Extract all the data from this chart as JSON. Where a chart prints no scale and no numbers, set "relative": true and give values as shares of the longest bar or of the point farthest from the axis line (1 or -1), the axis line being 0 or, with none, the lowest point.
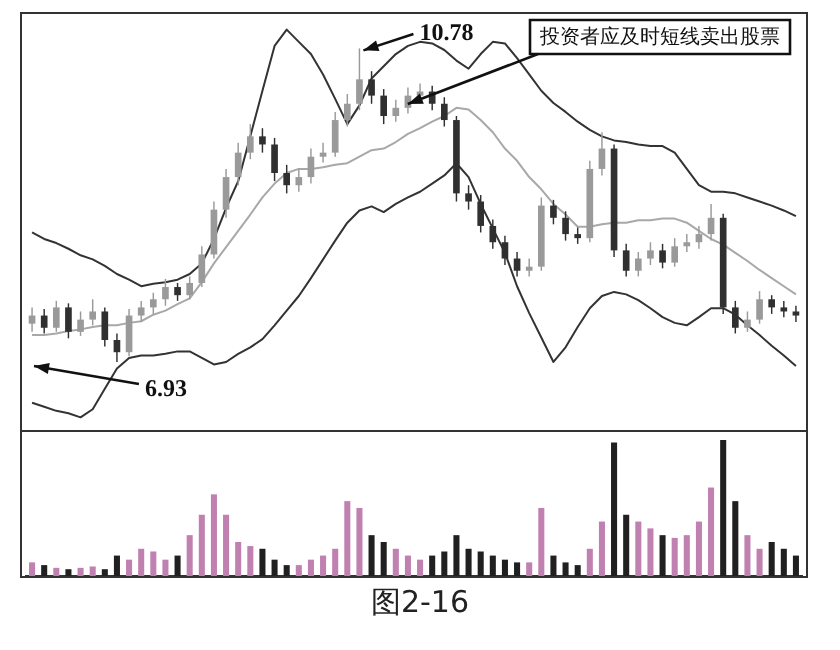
{
  "chart_data": [
    {
      "type": "candlestick",
      "tick_labels": false,
      "legend": false,
      "colors": [
        "#9a9a9a",
        "#303030",
        "#9a9a9a",
        "#303030",
        "#9a9a9a",
        "#9a9a9a",
        "#303030",
        "#303030",
        "#9a9a9a",
        "#9a9a9a",
        "#9a9a9a",
        "#9a9a9a",
        "#303030",
        "#9a9a9a",
        "#9a9a9a",
        "#9a9a9a",
        "#9a9a9a",
        "#9a9a9a",
        "#9a9a9a",
        "#303030",
        "#303030",
        "#303030",
        "#9a9a9a",
        "#9a9a9a",
        "#9a9a9a",
        "#9a9a9a",
        "#9a9a9a",
        "#9a9a9a",
        "#303030",
        "#303030",
        "#9a9a9a",
        "#9a9a9a",
        "#9a9a9a",
        "#303030",
        "#303030",
        "#303030",
        "#303030",
        "#303030",
        "#303030",
        "#303030",
        "#303030",
        "#9a9a9a",
        "#9a9a9a",
        "#303030",
        "#303030",
        "#303030",
        "#9a9a9a",
        "#9a9a9a",
        "#303030",
        "#303030",
        "#9a9a9a",
        "#9a9a9a",
        "#303030",
        "#9a9a9a",
        "#9a9a9a",
        "#9a9a9a",
        "#9a9a9a",
        "#303030",
        "#303030",
        "#9a9a9a",
        "#9a9a9a",
        "#303030",
        "#303030",
        "#303030"
      ],
      "categories": [
        null,
        null,
        null,
        null,
        null,
        null,
        null,
        null,
        null,
        null,
        null,
        null,
        null,
        null,
        null,
        null,
        null,
        null,
        null,
        null,
        null,
        null,
        null,
        null,
        null,
        null,
        null,
        null,
        null,
        null,
        null,
        null,
        null,
        null,
        null,
        null,
        null,
        null,
        null,
        null,
        null,
        null,
        null,
        null,
        null,
        null,
        null,
        null,
        null,
        null,
        null,
        null,
        null,
        null,
        null,
        null,
        null,
        null,
        null,
        null,
        null,
        null,
        null,
        null
      ],
      "ohlc": [
        [
          7.4,
          7.6,
          7.3,
          7.5
        ],
        [
          7.5,
          7.58,
          7.28,
          7.35
        ],
        [
          7.35,
          7.68,
          7.3,
          7.6
        ],
        [
          7.6,
          7.65,
          7.22,
          7.3
        ],
        [
          7.3,
          7.55,
          7.25,
          7.45
        ],
        [
          7.45,
          7.7,
          7.38,
          7.55
        ],
        [
          7.55,
          7.6,
          7.12,
          7.2
        ],
        [
          7.2,
          7.28,
          6.93,
          7.05
        ],
        [
          7.05,
          7.58,
          7.0,
          7.5
        ],
        [
          7.5,
          7.68,
          7.42,
          7.6
        ],
        [
          7.6,
          7.78,
          7.52,
          7.7
        ],
        [
          7.7,
          7.95,
          7.62,
          7.85
        ],
        [
          7.85,
          7.9,
          7.68,
          7.75
        ],
        [
          7.75,
          7.98,
          7.7,
          7.9
        ],
        [
          7.9,
          8.35,
          7.85,
          8.25
        ],
        [
          8.25,
          8.9,
          8.2,
          8.8
        ],
        [
          8.8,
          9.3,
          8.7,
          9.2
        ],
        [
          9.2,
          9.62,
          9.1,
          9.5
        ],
        [
          9.5,
          9.85,
          9.42,
          9.7
        ],
        [
          9.7,
          9.8,
          9.5,
          9.6
        ],
        [
          9.6,
          9.68,
          9.15,
          9.25
        ],
        [
          9.25,
          9.35,
          9.0,
          9.1
        ],
        [
          9.1,
          9.3,
          9.02,
          9.2
        ],
        [
          9.2,
          9.55,
          9.12,
          9.45
        ],
        [
          9.45,
          9.62,
          9.38,
          9.5
        ],
        [
          9.5,
          10.0,
          9.45,
          9.9
        ],
        [
          9.9,
          10.22,
          9.82,
          10.1
        ],
        [
          10.1,
          10.78,
          10.02,
          10.4
        ],
        [
          10.4,
          10.5,
          10.1,
          10.2
        ],
        [
          10.2,
          10.28,
          9.85,
          9.95
        ],
        [
          9.95,
          10.15,
          9.88,
          10.05
        ],
        [
          10.05,
          10.3,
          9.98,
          10.2
        ],
        [
          10.2,
          10.35,
          10.1,
          10.25
        ],
        [
          10.25,
          10.32,
          10.02,
          10.1
        ],
        [
          10.1,
          10.18,
          9.82,
          9.9
        ],
        [
          9.9,
          9.95,
          8.9,
          9.0
        ],
        [
          9.0,
          9.1,
          8.8,
          8.9
        ],
        [
          8.9,
          8.98,
          8.52,
          8.6
        ],
        [
          8.6,
          8.68,
          8.32,
          8.4
        ],
        [
          8.4,
          8.48,
          8.12,
          8.2
        ],
        [
          8.2,
          8.28,
          7.98,
          8.05
        ],
        [
          8.05,
          8.2,
          7.98,
          8.1
        ],
        [
          8.1,
          8.95,
          8.05,
          8.85
        ],
        [
          8.85,
          8.92,
          8.62,
          8.7
        ],
        [
          8.7,
          8.78,
          8.42,
          8.5
        ],
        [
          8.5,
          8.58,
          8.38,
          8.45
        ],
        [
          8.45,
          9.4,
          8.4,
          9.3
        ],
        [
          9.3,
          9.75,
          9.22,
          9.55
        ],
        [
          9.55,
          9.6,
          8.22,
          8.3
        ],
        [
          8.3,
          8.38,
          7.98,
          8.05
        ],
        [
          8.05,
          8.28,
          7.98,
          8.2
        ],
        [
          8.2,
          8.4,
          8.12,
          8.3
        ],
        [
          8.3,
          8.38,
          8.08,
          8.15
        ],
        [
          8.15,
          8.45,
          8.1,
          8.35
        ],
        [
          8.35,
          8.5,
          8.28,
          8.4
        ],
        [
          8.4,
          8.6,
          8.32,
          8.5
        ],
        [
          8.5,
          8.87,
          8.42,
          8.7
        ],
        [
          8.7,
          8.75,
          7.52,
          7.6
        ],
        [
          7.6,
          7.68,
          7.28,
          7.35
        ],
        [
          7.35,
          7.55,
          7.3,
          7.45
        ],
        [
          7.45,
          7.8,
          7.4,
          7.7
        ],
        [
          7.7,
          7.75,
          7.52,
          7.6
        ],
        [
          7.6,
          7.68,
          7.48,
          7.55
        ],
        [
          7.55,
          7.62,
          7.42,
          7.5
        ]
      ],
      "series": [
        {
          "type": "line",
          "color": "#333333",
          "values": [
            8.52,
            8.44,
            8.39,
            8.32,
            8.24,
            8.19,
            8.11,
            8.01,
            7.94,
            7.86,
            7.89,
            7.91,
            7.94,
            8.01,
            8.14,
            8.44,
            8.82,
            9.15,
            9.7,
            10.26,
            10.81,
            11.01,
            10.86,
            10.71,
            10.46,
            10.16,
            9.85,
            10.08,
            10.41,
            10.56,
            10.71,
            10.81,
            10.86,
            10.84,
            10.76,
            10.63,
            10.53,
            10.71,
            10.86,
            10.84,
            10.66,
            10.46,
            10.26,
            10.11,
            10.0,
            9.88,
            9.78,
            9.7,
            9.65,
            9.63,
            9.6,
            9.58,
            9.58,
            9.5,
            9.3,
            9.1,
            9.02,
            9.02,
            9.0,
            8.95,
            8.9,
            8.85,
            8.79,
            8.72
          ]
        },
        {
          "type": "line",
          "color": "#a8a8a8",
          "values": [
            7.26,
            7.26,
            7.28,
            7.31,
            7.33,
            7.36,
            7.38,
            7.38,
            7.41,
            7.43,
            7.51,
            7.56,
            7.64,
            7.71,
            7.91,
            8.14,
            8.34,
            8.54,
            8.74,
            8.95,
            9.12,
            9.25,
            9.3,
            9.3,
            9.32,
            9.35,
            9.37,
            9.45,
            9.53,
            9.55,
            9.63,
            9.73,
            9.8,
            9.88,
            9.95,
            10.05,
            10.03,
            9.9,
            9.75,
            9.55,
            9.4,
            9.2,
            9.05,
            8.87,
            8.74,
            8.59,
            8.59,
            8.62,
            8.64,
            8.64,
            8.67,
            8.67,
            8.69,
            8.69,
            8.64,
            8.54,
            8.44,
            8.37,
            8.27,
            8.17,
            8.06,
            7.96,
            7.86,
            7.76
          ]
        },
        {
          "type": "line",
          "color": "#333333",
          "values": [
            6.43,
            6.38,
            6.33,
            6.3,
            6.25,
            6.35,
            6.6,
            6.85,
            6.98,
            7.01,
            7.01,
            7.03,
            7.06,
            7.06,
            6.98,
            6.9,
            6.93,
            7.03,
            7.11,
            7.21,
            7.38,
            7.56,
            7.74,
            7.96,
            8.19,
            8.42,
            8.64,
            8.79,
            8.84,
            8.77,
            8.87,
            8.95,
            9.02,
            9.12,
            9.22,
            9.37,
            9.2,
            8.87,
            8.57,
            8.27,
            7.86,
            7.53,
            7.23,
            6.93,
            7.11,
            7.36,
            7.59,
            7.74,
            7.79,
            7.76,
            7.69,
            7.59,
            7.48,
            7.41,
            7.38,
            7.48,
            7.59,
            7.59,
            7.51,
            7.38,
            7.26,
            7.13,
            7.01,
            6.88
          ]
        }
      ],
      "annotations": [
        {
          "text": "10.78",
          "y": 10.78
        },
        {
          "text": "6.93",
          "y": 6.93
        },
        "投资者应及时短线卖出股票",
        "图2-16"
      ]
    },
    {
      "type": "bar",
      "relative": true,
      "legend": false,
      "categories": [
        null,
        null,
        null,
        null,
        null,
        null,
        null,
        null,
        null,
        null,
        null,
        null,
        null,
        null,
        null,
        null,
        null,
        null,
        null,
        null,
        null,
        null,
        null,
        null,
        null,
        null,
        null,
        null,
        null,
        null,
        null,
        null,
        null,
        null,
        null,
        null,
        null,
        null,
        null,
        null,
        null,
        null,
        null,
        null,
        null,
        null,
        null,
        null,
        null,
        null,
        null,
        null,
        null,
        null,
        null,
        null,
        null,
        null,
        null,
        null,
        null,
        null,
        null,
        null
      ],
      "values": [
        0.1,
        0.08,
        0.06,
        0.05,
        0.06,
        0.07,
        0.05,
        0.15,
        0.12,
        0.2,
        0.18,
        0.12,
        0.15,
        0.3,
        0.45,
        0.6,
        0.45,
        0.25,
        0.22,
        0.2,
        0.12,
        0.08,
        0.08,
        0.12,
        0.15,
        0.2,
        0.55,
        0.5,
        0.3,
        0.25,
        0.2,
        0.15,
        0.12,
        0.15,
        0.18,
        0.3,
        0.2,
        0.18,
        0.15,
        0.12,
        0.1,
        0.1,
        0.5,
        0.15,
        0.1,
        0.08,
        0.2,
        0.4,
        0.98,
        0.45,
        0.4,
        0.35,
        0.3,
        0.28,
        0.3,
        0.4,
        0.65,
        1.0,
        0.55,
        0.3,
        0.2,
        0.25,
        0.2,
        0.15
      ],
      "colors": [
        "#c080b0",
        "#202020",
        "#c080b0",
        "#202020",
        "#c080b0",
        "#c080b0",
        "#202020",
        "#202020",
        "#c080b0",
        "#c080b0",
        "#c080b0",
        "#c080b0",
        "#202020",
        "#c080b0",
        "#c080b0",
        "#c080b0",
        "#c080b0",
        "#c080b0",
        "#c080b0",
        "#202020",
        "#202020",
        "#202020",
        "#c080b0",
        "#c080b0",
        "#c080b0",
        "#c080b0",
        "#c080b0",
        "#c080b0",
        "#202020",
        "#202020",
        "#c080b0",
        "#c080b0",
        "#c080b0",
        "#202020",
        "#202020",
        "#202020",
        "#202020",
        "#202020",
        "#202020",
        "#202020",
        "#202020",
        "#c080b0",
        "#c080b0",
        "#202020",
        "#202020",
        "#202020",
        "#c080b0",
        "#c080b0",
        "#202020",
        "#202020",
        "#c080b0",
        "#c080b0",
        "#202020",
        "#c080b0",
        "#c080b0",
        "#c080b0",
        "#c080b0",
        "#202020",
        "#202020",
        "#c080b0",
        "#c080b0",
        "#202020",
        "#202020",
        "#202020"
      ]
    }
  ]
}
